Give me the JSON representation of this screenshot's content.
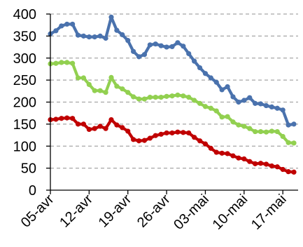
{
  "chart_data": {
    "type": "line",
    "title": "",
    "xlabel": "",
    "ylabel": "",
    "ylim": [
      0,
      400
    ],
    "y_ticks": [
      0,
      50,
      100,
      150,
      200,
      250,
      300,
      350,
      400
    ],
    "x_tick_labels": [
      "05-avr",
      "12-avr",
      "19-avr",
      "26-avr",
      "03-mai",
      "10-mai",
      "17-mai"
    ],
    "x_tick_index": [
      0,
      7,
      14,
      21,
      28,
      35,
      42
    ],
    "legend": "none",
    "grid": true,
    "series": [
      {
        "color": "#4a72ad",
        "values": [
          355,
          362,
          373,
          377,
          377,
          352,
          350,
          348,
          348,
          350,
          345,
          393,
          363,
          353,
          340,
          315,
          303,
          308,
          330,
          332,
          328,
          325,
          326,
          335,
          327,
          310,
          293,
          278,
          265,
          255,
          245,
          228,
          235,
          212,
          200,
          204,
          210,
          197,
          196,
          192,
          189,
          186,
          182,
          148,
          150
        ]
      },
      {
        "color": "#92d050",
        "values": [
          287,
          288,
          290,
          290,
          288,
          255,
          255,
          240,
          226,
          226,
          222,
          256,
          236,
          230,
          222,
          212,
          207,
          207,
          211,
          211,
          211,
          213,
          214,
          216,
          214,
          211,
          204,
          197,
          190,
          186,
          180,
          166,
          167,
          155,
          148,
          145,
          140,
          133,
          133,
          132,
          134,
          133,
          122,
          108,
          107
        ]
      },
      {
        "color": "#c00000",
        "values": [
          160,
          161,
          163,
          164,
          163,
          150,
          150,
          138,
          140,
          145,
          140,
          160,
          148,
          142,
          134,
          115,
          112,
          113,
          118,
          124,
          127,
          130,
          130,
          132,
          131,
          130,
          120,
          112,
          105,
          95,
          86,
          84,
          83,
          78,
          73,
          71,
          65,
          60,
          61,
          59,
          55,
          53,
          47,
          42,
          41
        ]
      }
    ]
  }
}
